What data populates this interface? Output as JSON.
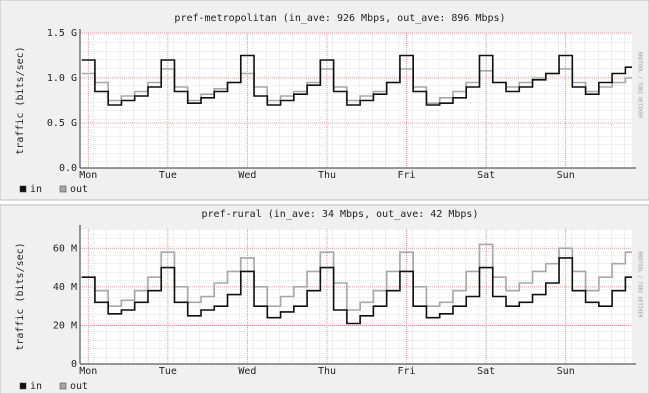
{
  "chart_data": [
    {
      "type": "line",
      "title": "pref-metropolitan (in_ave: 926 Mbps, out_ave: 896 Mbps)",
      "y_label": "traffic (bits/sec)",
      "side_note": "RRDTOOL / TOBI OETIKER",
      "x": [
        -2,
        2,
        6,
        10,
        14,
        18,
        22,
        26,
        30,
        34,
        38,
        42,
        46,
        50,
        54,
        58,
        62,
        66,
        70,
        74,
        78,
        82,
        86,
        90,
        94,
        98,
        102,
        106,
        110,
        114,
        118,
        122,
        126,
        130,
        134,
        138,
        142,
        146,
        150,
        154,
        158,
        162
      ],
      "xlim": [
        -2.5,
        164
      ],
      "xticks": [
        {
          "value": 0,
          "label": "Mon"
        },
        {
          "value": 24,
          "label": "Tue"
        },
        {
          "value": 48,
          "label": "Wed"
        },
        {
          "value": 72,
          "label": "Thu"
        },
        {
          "value": 96,
          "label": "Fri"
        },
        {
          "value": 120,
          "label": "Sat"
        },
        {
          "value": 144,
          "label": "Sun"
        }
      ],
      "ylim": [
        0,
        1.5
      ],
      "yticks": [
        {
          "value": 0,
          "label": "0.0"
        },
        {
          "value": 0.5,
          "label": "0.5 G"
        },
        {
          "value": 1,
          "label": "1.0 G"
        },
        {
          "value": 1.5,
          "label": "1.5 G"
        }
      ],
      "grid": true,
      "step": true,
      "series": [
        {
          "name": "in",
          "color": "#111111",
          "values": [
            1.2,
            0.85,
            0.7,
            0.75,
            0.8,
            0.9,
            1.2,
            0.85,
            0.72,
            0.78,
            0.85,
            0.95,
            1.25,
            0.8,
            0.7,
            0.75,
            0.82,
            0.92,
            1.2,
            0.85,
            0.7,
            0.75,
            0.82,
            0.95,
            1.25,
            0.85,
            0.7,
            0.72,
            0.78,
            0.9,
            1.25,
            0.95,
            0.85,
            0.9,
            0.98,
            1.05,
            1.25,
            0.9,
            0.82,
            0.95,
            1.05,
            1.12
          ]
        },
        {
          "name": "out",
          "color": "#a8a8a8",
          "values": [
            1.05,
            0.95,
            0.75,
            0.8,
            0.85,
            0.95,
            1.1,
            0.9,
            0.75,
            0.82,
            0.88,
            0.95,
            1.05,
            0.9,
            0.75,
            0.8,
            0.85,
            0.95,
            1.1,
            0.9,
            0.75,
            0.8,
            0.85,
            0.95,
            1.1,
            0.9,
            0.72,
            0.78,
            0.85,
            0.95,
            1.08,
            0.95,
            0.9,
            0.95,
            1.0,
            1.05,
            1.1,
            0.95,
            0.85,
            0.9,
            0.95,
            1.0
          ]
        }
      ]
    },
    {
      "type": "line",
      "title": "pref-rural (in_ave: 34 Mbps, out_ave: 42 Mbps)",
      "y_label": "traffic (bits/sec)",
      "side_note": "RRDTOOL / TOBI OETIKER",
      "x": [
        -2,
        2,
        6,
        10,
        14,
        18,
        22,
        26,
        30,
        34,
        38,
        42,
        46,
        50,
        54,
        58,
        62,
        66,
        70,
        74,
        78,
        82,
        86,
        90,
        94,
        98,
        102,
        106,
        110,
        114,
        118,
        122,
        126,
        130,
        134,
        138,
        142,
        146,
        150,
        154,
        158,
        162
      ],
      "xlim": [
        -2.5,
        164
      ],
      "xticks": [
        {
          "value": 0,
          "label": "Mon"
        },
        {
          "value": 24,
          "label": "Tue"
        },
        {
          "value": 48,
          "label": "Wed"
        },
        {
          "value": 72,
          "label": "Thu"
        },
        {
          "value": 96,
          "label": "Fri"
        },
        {
          "value": 120,
          "label": "Sat"
        },
        {
          "value": 144,
          "label": "Sun"
        }
      ],
      "ylim": [
        0,
        70
      ],
      "yticks": [
        0,
        {
          "value": 20,
          "label": "20 M"
        },
        {
          "value": 40,
          "label": "40 M"
        },
        {
          "value": 60,
          "label": "60 M"
        }
      ],
      "grid": true,
      "step": true,
      "series": [
        {
          "name": "in",
          "color": "#111111",
          "values": [
            45,
            32,
            26,
            28,
            32,
            38,
            50,
            32,
            25,
            28,
            30,
            36,
            48,
            30,
            24,
            27,
            30,
            38,
            50,
            28,
            21,
            25,
            30,
            38,
            48,
            30,
            24,
            26,
            30,
            35,
            50,
            35,
            30,
            32,
            36,
            42,
            55,
            38,
            32,
            30,
            38,
            45
          ]
        },
        {
          "name": "out",
          "color": "#a8a8a8",
          "values": [
            45,
            38,
            30,
            33,
            38,
            45,
            58,
            40,
            32,
            35,
            42,
            48,
            55,
            40,
            30,
            35,
            40,
            48,
            58,
            42,
            28,
            32,
            38,
            48,
            58,
            40,
            30,
            32,
            38,
            48,
            62,
            45,
            38,
            42,
            48,
            52,
            60,
            48,
            38,
            45,
            52,
            58
          ]
        }
      ]
    }
  ]
}
